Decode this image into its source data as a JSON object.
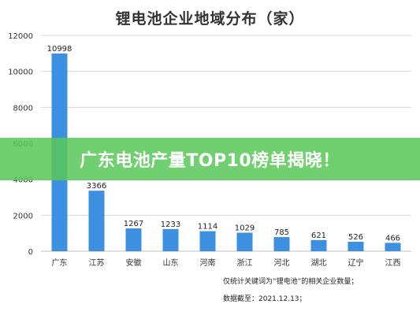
{
  "chart_data": {
    "type": "bar",
    "title": "锂电池企业地域分布（家）",
    "categories": [
      "广东",
      "江苏",
      "安徽",
      "山东",
      "河南",
      "浙江",
      "河北",
      "湖北",
      "辽宁",
      "江西"
    ],
    "values": [
      10998,
      3366,
      1267,
      1233,
      1114,
      1029,
      785,
      621,
      526,
      466
    ],
    "ylim": [
      0,
      12000
    ],
    "yticks": [
      0,
      2000,
      4000,
      6000,
      8000,
      10000,
      12000
    ],
    "grid": true,
    "bar_color": "#3d8fe0",
    "data_labels": true
  },
  "banner": {
    "text": "广东电池产量TOP10榜单揭晓！",
    "color": "#58c858"
  },
  "notes": {
    "line1": "仅统计关键词为“锂电池”的相关企业数量；",
    "line2": "数据截至：2021.12.13；"
  }
}
